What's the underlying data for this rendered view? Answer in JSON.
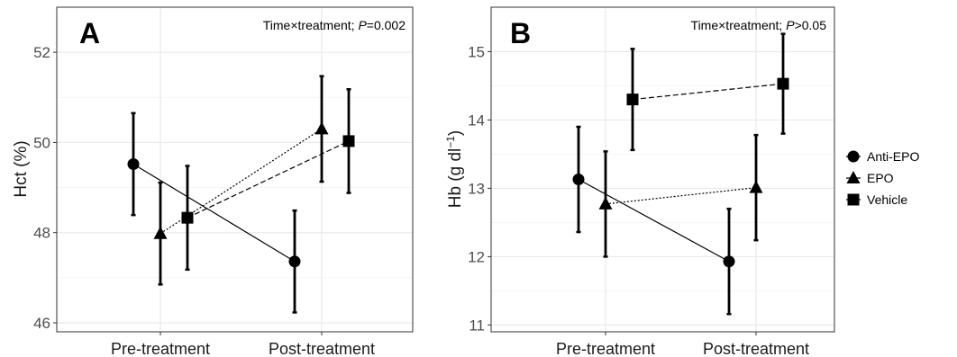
{
  "chart_data": [
    {
      "type": "line",
      "panel_label": "A",
      "annotation": {
        "prefix": "Time×treatment; ",
        "p_symbol": "P",
        "p_value": "=0.002"
      },
      "ylabel": "Hct (%)",
      "xlabel": "",
      "categories": [
        "Pre-treatment",
        "Post-treatment"
      ],
      "ylim": [
        45.8,
        53.0
      ],
      "yticks": [
        46,
        48,
        50,
        52
      ],
      "grid": true,
      "series": [
        {
          "name": "Anti-EPO",
          "marker": "circle",
          "linestyle": "solid",
          "values": [
            49.52,
            47.36
          ],
          "errors": [
            1.13,
            1.13
          ]
        },
        {
          "name": "EPO",
          "marker": "triangle",
          "linestyle": "dotted",
          "values": [
            47.98,
            50.3
          ],
          "errors": [
            1.13,
            1.17
          ]
        },
        {
          "name": "Vehicle",
          "marker": "square",
          "linestyle": "dashed",
          "values": [
            48.33,
            50.03
          ],
          "errors": [
            1.15,
            1.15
          ]
        }
      ]
    },
    {
      "type": "line",
      "panel_label": "B",
      "annotation": {
        "prefix": "Time×treatment; ",
        "p_symbol": "P",
        "p_value": ">0.05"
      },
      "ylabel_main": "Hb (g dl",
      "ylabel_sup": "−1",
      "ylabel_end": ")",
      "xlabel": "",
      "categories": [
        "Pre-treatment",
        "Post-treatment"
      ],
      "ylim": [
        10.9,
        15.65
      ],
      "yticks": [
        11,
        12,
        13,
        14,
        15
      ],
      "grid": true,
      "series": [
        {
          "name": "Anti-EPO",
          "marker": "circle",
          "linestyle": "solid",
          "values": [
            13.13,
            11.93
          ],
          "errors": [
            0.77,
            0.77
          ]
        },
        {
          "name": "EPO",
          "marker": "triangle",
          "linestyle": "dotted",
          "values": [
            12.77,
            13.01
          ],
          "errors": [
            0.77,
            0.77
          ]
        },
        {
          "name": "Vehicle",
          "marker": "square",
          "linestyle": "dashed",
          "values": [
            14.3,
            14.53
          ],
          "errors": [
            0.74,
            0.73
          ]
        }
      ]
    }
  ],
  "legend": {
    "placement": "right",
    "entries": [
      {
        "name": "Anti-EPO",
        "marker": "circle"
      },
      {
        "name": "EPO",
        "marker": "triangle"
      },
      {
        "name": "Vehicle",
        "marker": "square"
      }
    ]
  }
}
